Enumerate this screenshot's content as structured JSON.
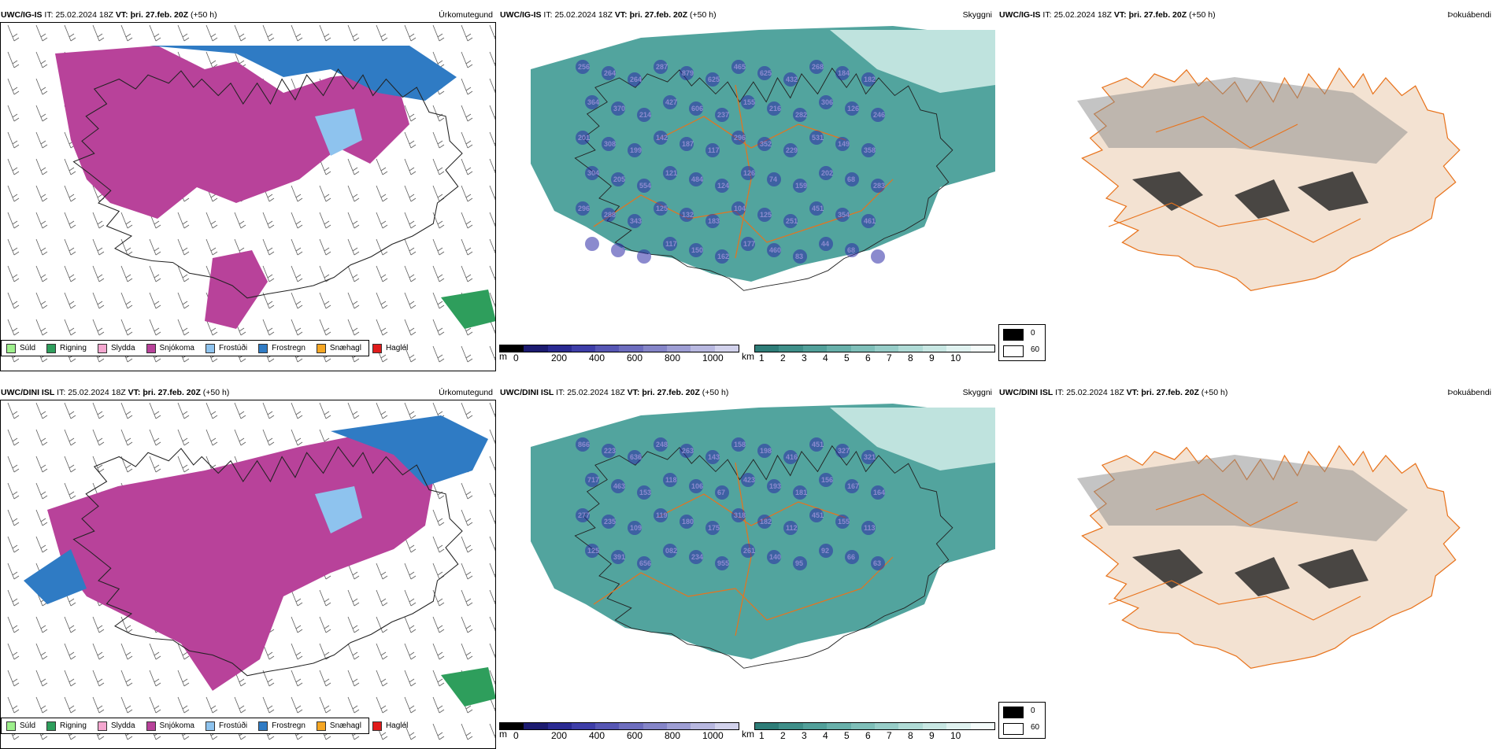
{
  "colors": {
    "sn_pink": "#b8429a",
    "frost_blue": "#2f7bc4",
    "light_blue": "#8ec3ee",
    "teal": "#3f9a94",
    "teal_light": "#bfe3de",
    "road_orange": "#e8731c",
    "dark_blue": "#2b2aa5",
    "fog_land": "#f3e2d2",
    "fog_dark": "#2a2a2a"
  },
  "precip_legend": [
    {
      "label": "Súld",
      "color": "#9ef08c"
    },
    {
      "label": "Rigning",
      "color": "#2e9e5c"
    },
    {
      "label": "Slydda",
      "color": "#f4a6cf"
    },
    {
      "label": "Snjókoma",
      "color": "#b8429a"
    },
    {
      "label": "Frostúði",
      "color": "#8ec3ee"
    },
    {
      "label": "Frostregn",
      "color": "#2f7bc4"
    },
    {
      "label": "Snæhagl",
      "color": "#f5a623"
    },
    {
      "label": "Haglél",
      "color": "#e01b1b"
    }
  ],
  "rows": [
    {
      "precip": {
        "model": "UWC/IG-IS",
        "it_label": "IT:",
        "it_value": "25.02.2024 18Z",
        "vt_label": "VT:",
        "vt_value": "þri. 27.feb. 20Z",
        "lead": "(+50 h)",
        "type": "Úrkomutegund"
      },
      "cloud": {
        "model": "UWC/IG-IS",
        "it_label": "IT:",
        "it_value": "25.02.2024 18Z",
        "vt_label": "VT:",
        "vt_value": "þri. 27.feb. 20Z",
        "lead": "(+50 h)",
        "type": "Skyggni"
      },
      "fog": {
        "model": "UWC/IG-IS",
        "it_label": "IT:",
        "it_value": "25.02.2024 18Z",
        "vt_label": "VT:",
        "vt_value": "þri. 27.feb. 20Z",
        "lead": "(+50 h)",
        "type": "Þokuábendi"
      },
      "cloud_labels": [
        "256",
        "264",
        "264",
        "287",
        "879",
        "625",
        "465",
        "625",
        "432",
        "268",
        "184",
        "182",
        "364",
        "370",
        "214",
        "427",
        "606",
        "237",
        "155",
        "216",
        "282",
        "306",
        "126",
        "246",
        "201",
        "308",
        "199",
        "142",
        "187",
        "117",
        "296",
        "352",
        "229",
        "531",
        "149",
        "358",
        "304",
        "205",
        "554",
        "121",
        "484",
        "124",
        "126",
        "74",
        "159",
        "202",
        "68",
        "283",
        "296",
        "288",
        "343",
        "125",
        "132",
        "183",
        "104",
        "125",
        "251",
        "451",
        "354",
        "461",
        "146",
        "298",
        "159",
        "117",
        "150",
        "162",
        "177",
        "460",
        "83",
        "44",
        "68",
        "39"
      ]
    },
    {
      "precip": {
        "model": "UWC/DINI ISL",
        "it_label": "IT:",
        "it_value": "25.02.2024 18Z",
        "vt_label": "VT:",
        "vt_value": "þri. 27.feb. 20Z",
        "lead": "(+50 h)",
        "type": "Úrkomutegund"
      },
      "cloud": {
        "model": "UWC/DINI ISL",
        "it_label": "IT:",
        "it_value": "25.02.2024 18Z",
        "vt_label": "VT:",
        "vt_value": "þri. 27.feb. 20Z",
        "lead": "(+50 h)",
        "type": "Skyggni"
      },
      "fog": {
        "model": "UWC/DINI ISL",
        "it_label": "IT:",
        "it_value": "25.02.2024 18Z",
        "vt_label": "VT:",
        "vt_value": "þri. 27.feb. 20Z",
        "lead": "(+50 h)",
        "type": "Þokuábendi"
      },
      "cloud_labels": [
        "866",
        "223",
        "636",
        "248",
        "263",
        "143",
        "158",
        "198",
        "416",
        "451",
        "327",
        "321",
        "717",
        "463",
        "153",
        "118",
        "106",
        "67",
        "423",
        "193",
        "181",
        "156",
        "167",
        "164",
        "277",
        "235",
        "109",
        "119",
        "180",
        "175",
        "318",
        "182",
        "112",
        "451",
        "155",
        "113",
        "125",
        "391",
        "656",
        "082",
        "234",
        "955",
        "261",
        "140",
        "95",
        "92",
        "66",
        "63"
      ]
    }
  ],
  "cloud_scale": {
    "m_unit": "m",
    "m_ticks": [
      "0",
      "200",
      "400",
      "600",
      "800",
      "1000"
    ],
    "km_unit": "km",
    "km_ticks": [
      "1",
      "2",
      "3",
      "4",
      "5",
      "6",
      "7",
      "8",
      "9",
      "10"
    ]
  },
  "fog_legend": {
    "dark": "0",
    "light": "60"
  }
}
